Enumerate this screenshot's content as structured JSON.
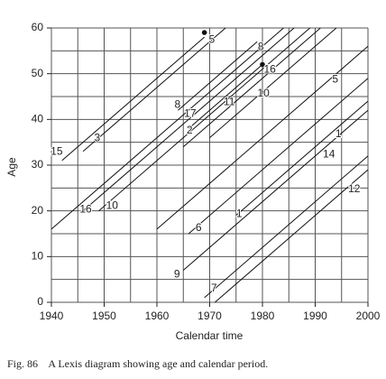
{
  "chart_data": {
    "type": "line",
    "xlabel": "Calendar time",
    "ylabel": "Age",
    "caption": "Fig. 86    A Lexis diagram showing age and calendar period.",
    "xlim": [
      1940,
      2000
    ],
    "ylim": [
      0,
      60
    ],
    "xticks": [
      1940,
      1950,
      1960,
      1970,
      1980,
      1990,
      2000
    ],
    "yticks": [
      0,
      10,
      20,
      30,
      40,
      50,
      60
    ],
    "xgrid": [
      1940,
      1945,
      1950,
      1955,
      1960,
      1965,
      1970,
      1975,
      1980,
      1985,
      1990,
      1995,
      2000
    ],
    "ygrid": [
      0,
      5,
      10,
      15,
      20,
      25,
      30,
      35,
      40,
      45,
      50,
      55,
      60
    ],
    "color": "#111111",
    "grid_color": "#555555",
    "series": [
      {
        "x": [
          1942,
          1969
        ],
        "values": [
          31,
          58
        ]
      },
      {
        "x": [
          1946,
          1973
        ],
        "values": [
          33,
          60
        ]
      },
      {
        "x": [
          1940,
          1984
        ],
        "values": [
          16,
          60
        ]
      },
      {
        "x": [
          1946,
          1986
        ],
        "values": [
          20,
          60
        ]
      },
      {
        "x": [
          1949,
          1989
        ],
        "values": [
          20,
          60
        ]
      },
      {
        "x": [
          1964,
          1979
        ],
        "values": [
          42,
          57
        ]
      },
      {
        "x": [
          1966,
          1980
        ],
        "values": [
          38,
          52
        ]
      },
      {
        "x": [
          1965,
          1991
        ],
        "values": [
          34,
          60
        ]
      },
      {
        "x": [
          1970,
          1994
        ],
        "values": [
          36,
          60
        ]
      },
      {
        "x": [
          1960,
          2000
        ],
        "values": [
          16,
          56
        ]
      },
      {
        "x": [
          1966,
          2000
        ],
        "values": [
          15,
          49
        ]
      },
      {
        "x": [
          1975,
          2000
        ],
        "values": [
          19,
          44
        ]
      },
      {
        "x": [
          1965,
          2000
        ],
        "values": [
          7,
          42
        ]
      },
      {
        "x": [
          1969,
          2000
        ],
        "values": [
          1,
          32
        ]
      },
      {
        "x": [
          1971,
          2000
        ],
        "values": [
          0,
          29
        ]
      }
    ],
    "points": {
      "x": [
        1969,
        1980
      ],
      "y": [
        59,
        52
      ]
    },
    "annotations": [
      {
        "text": "5",
        "x": 1970.4,
        "y": 57.4
      },
      {
        "text": "8",
        "x": 1979.7,
        "y": 55.8
      },
      {
        "text": "16",
        "x": 1981.4,
        "y": 50.9
      },
      {
        "text": "10",
        "x": 1980.2,
        "y": 45.6
      },
      {
        "text": "5",
        "x": 1993.8,
        "y": 48.7
      },
      {
        "text": "8",
        "x": 1963.9,
        "y": 43.2
      },
      {
        "text": "11",
        "x": 1973.7,
        "y": 43.8
      },
      {
        "text": "17",
        "x": 1966.3,
        "y": 41.2
      },
      {
        "text": "2",
        "x": 1966.2,
        "y": 37.5
      },
      {
        "text": "3",
        "x": 1948.7,
        "y": 35.9
      },
      {
        "text": "15",
        "x": 1941,
        "y": 32.9
      },
      {
        "text": "1",
        "x": 1994.4,
        "y": 36.7
      },
      {
        "text": "14",
        "x": 1992.6,
        "y": 32.3
      },
      {
        "text": "12",
        "x": 1997.4,
        "y": 24.7
      },
      {
        "text": "16",
        "x": 1946.5,
        "y": 20.3
      },
      {
        "text": "10",
        "x": 1951.5,
        "y": 21.1
      },
      {
        "text": "1",
        "x": 1975.6,
        "y": 19.3
      },
      {
        "text": "6",
        "x": 1967.9,
        "y": 16.2
      },
      {
        "text": "9",
        "x": 1963.8,
        "y": 6.1
      },
      {
        "text": "7",
        "x": 1970.8,
        "y": 3
      }
    ]
  }
}
